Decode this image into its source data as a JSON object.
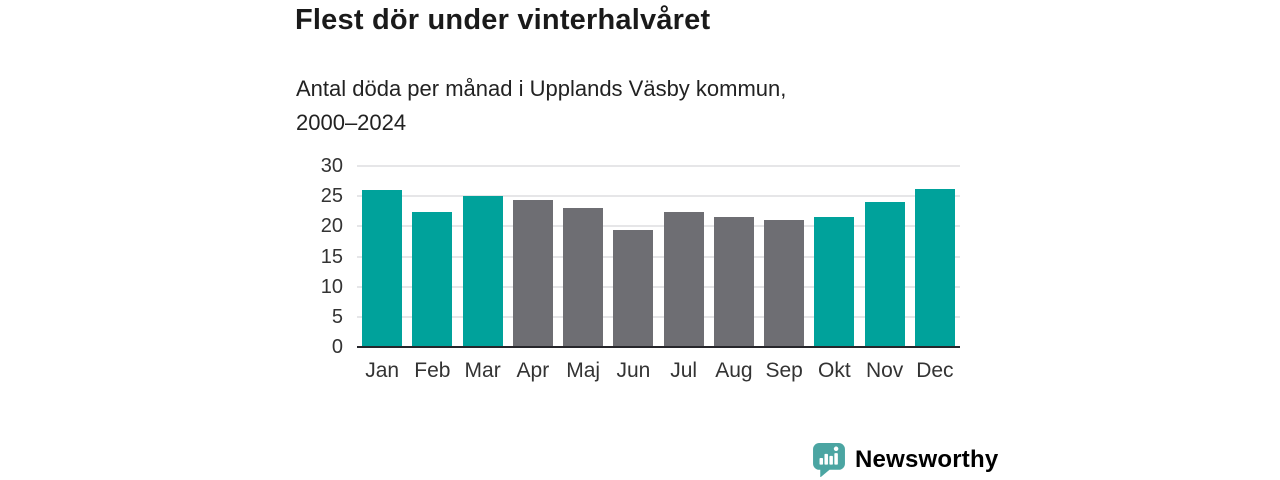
{
  "header": {
    "title": "Flest dör under vinterhalvåret",
    "subtitle_line1": "Antal döda per månad i Upplands Väsby kommun,",
    "subtitle_line2": "2000–2024"
  },
  "chart_data": {
    "type": "bar",
    "title": "Flest dör under vinterhalvåret",
    "subtitle": "Antal döda per månad i Upplands Väsby kommun, 2000–2024",
    "categories": [
      "Jan",
      "Feb",
      "Mar",
      "Apr",
      "Maj",
      "Jun",
      "Jul",
      "Aug",
      "Sep",
      "Okt",
      "Nov",
      "Dec"
    ],
    "values": [
      26.1,
      22.3,
      25.1,
      24.4,
      23.1,
      19.4,
      22.4,
      21.5,
      21.0,
      21.6,
      24.1,
      26.2
    ],
    "bar_groups": [
      "winter",
      "winter",
      "winter",
      "summer",
      "summer",
      "summer",
      "summer",
      "summer",
      "summer",
      "winter",
      "winter",
      "winter"
    ],
    "bar_palette": {
      "winter": "#00A29B",
      "summer": "#6E6E73"
    },
    "xlabel": "",
    "ylabel": "",
    "ylim": [
      0,
      30
    ],
    "yticks": [
      0,
      5,
      10,
      15,
      20,
      25,
      30
    ],
    "grid": "horizontal",
    "legend": "none"
  },
  "footer": {
    "brand": "Newsworthy",
    "brand_color": "#3F9B99",
    "icon": "newsworthy-speech-bubble-bar-chart-icon",
    "icon_bg": "#4BA5A2"
  },
  "colors": {
    "bar_teal": "#00A29B",
    "bar_gray": "#6E6E73",
    "gridline": "#E6E6E8",
    "axis_line": "#26262B",
    "title_text": "#1A1A1A",
    "tick_text": "#333333"
  }
}
